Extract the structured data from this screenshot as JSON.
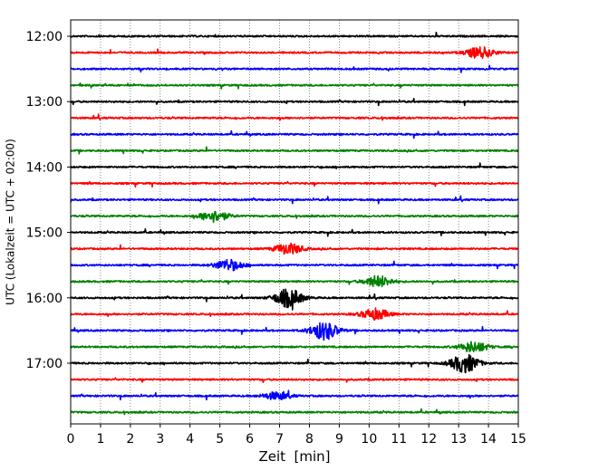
{
  "chart_data": {
    "type": "line",
    "title": "",
    "xlabel": "Zeit  [min]",
    "ylabel": "UTC (Lokalzeit = UTC + 02:00)",
    "xlim": [
      0,
      15
    ],
    "x_ticks": [
      0,
      1,
      2,
      3,
      4,
      5,
      6,
      7,
      8,
      9,
      10,
      11,
      12,
      13,
      14,
      15
    ],
    "y_tick_labels": [
      "12:00",
      "13:00",
      "14:00",
      "15:00",
      "16:00",
      "17:00"
    ],
    "grid": "vertical dotted lines at each minute",
    "trace_start_times_utc": [
      "12:00",
      "12:15",
      "12:30",
      "12:45",
      "13:00",
      "13:15",
      "13:30",
      "13:45",
      "14:00",
      "14:15",
      "14:30",
      "14:45",
      "15:00",
      "15:15",
      "15:30",
      "15:45",
      "16:00",
      "16:15",
      "16:30",
      "16:45",
      "17:00",
      "17:15",
      "17:30",
      "17:45"
    ],
    "trace_color_cycle": [
      "#000000",
      "#ff0000",
      "#0000ff",
      "#008000"
    ],
    "notable_events": [
      {
        "trace": "12:15",
        "x_min": 13.7,
        "amplitude": "medium"
      },
      {
        "trace": "14:45",
        "x_min": 4.8,
        "amplitude": "medium"
      },
      {
        "trace": "15:15",
        "x_min": 7.3,
        "amplitude": "medium"
      },
      {
        "trace": "15:30",
        "x_min": 5.3,
        "amplitude": "medium"
      },
      {
        "trace": "15:45",
        "x_min": 10.3,
        "amplitude": "medium"
      },
      {
        "trace": "16:00",
        "x_min": 7.3,
        "amplitude": "large"
      },
      {
        "trace": "16:15",
        "x_min": 10.2,
        "amplitude": "medium"
      },
      {
        "trace": "16:30",
        "x_min": 8.5,
        "amplitude": "large"
      },
      {
        "trace": "16:45",
        "x_min": 13.5,
        "amplitude": "medium"
      },
      {
        "trace": "17:00",
        "x_min": 13.2,
        "amplitude": "large"
      },
      {
        "trace": "17:30",
        "x_min": 6.9,
        "amplitude": "small"
      }
    ]
  }
}
